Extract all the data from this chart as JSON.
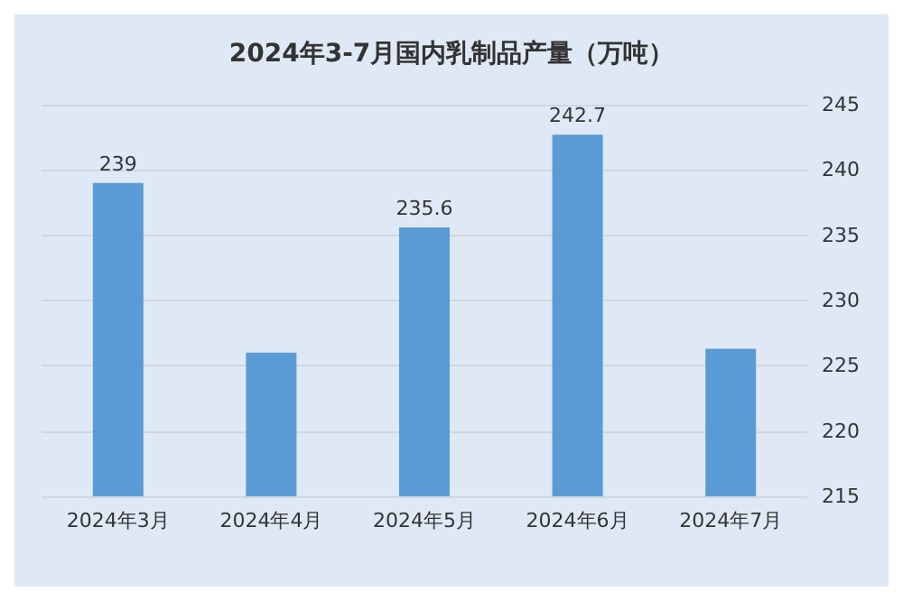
{
  "chart_data": {
    "type": "bar",
    "title": "2024年3-7月国内乳制品产量（万吨）",
    "categories": [
      "2024年3月",
      "2024年4月",
      "2024年5月",
      "2024年6月",
      "2024年7月"
    ],
    "values": [
      239,
      226,
      235.6,
      242.7,
      226.3
    ],
    "value_labels": [
      "239",
      null,
      "235.6",
      "242.7",
      null
    ],
    "color": "#5b9bd5",
    "ylim": [
      215,
      245
    ],
    "yticks": [
      215,
      220,
      225,
      230,
      235,
      240,
      245
    ],
    "grid": "y"
  }
}
